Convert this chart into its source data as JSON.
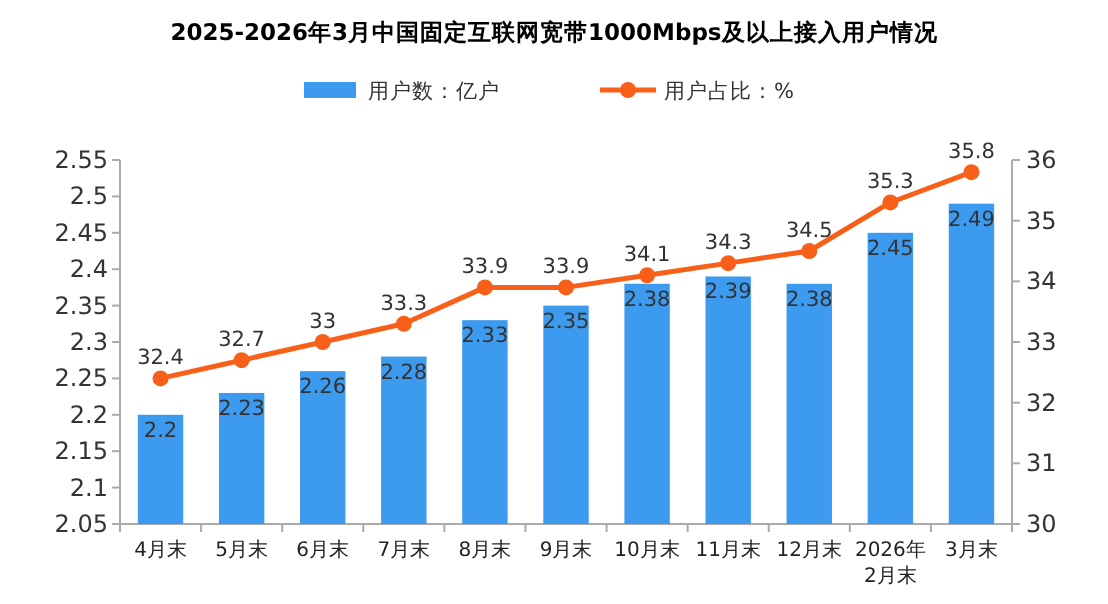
{
  "chart_data": {
    "type": "bar",
    "title": "2025-2026年3月中国固定互联网宽带1000Mbps及以上接入用户情况",
    "categories": [
      "4月末",
      "5月末",
      "6月末",
      "7月末",
      "8月末",
      "9月末",
      "10月末",
      "11月末",
      "12月末",
      "2026年\n2月末",
      "3月末"
    ],
    "series": [
      {
        "name": "用户数：亿户",
        "color": "#3d9bef",
        "values": [
          2.2,
          2.23,
          2.26,
          2.28,
          2.33,
          2.35,
          2.38,
          2.39,
          2.38,
          2.45,
          2.49
        ]
      },
      {
        "name": "用户占比：%",
        "type": "line",
        "axis": "y2",
        "color": "#f8601a",
        "marker": "circle",
        "values": [
          32.4,
          32.7,
          33,
          33.3,
          33.9,
          33.9,
          34.1,
          34.3,
          34.5,
          35.3,
          35.8
        ]
      }
    ],
    "ylim": [
      2.05,
      2.55
    ],
    "yticks": [
      2.05,
      2.1,
      2.15,
      2.2,
      2.25,
      2.3,
      2.35,
      2.4,
      2.45,
      2.5,
      2.55
    ],
    "y2lim": [
      30,
      36
    ],
    "y2ticks": [
      30,
      31,
      32,
      33,
      34,
      35,
      36
    ],
    "data_labels": true,
    "legend": "top",
    "grid": false
  }
}
